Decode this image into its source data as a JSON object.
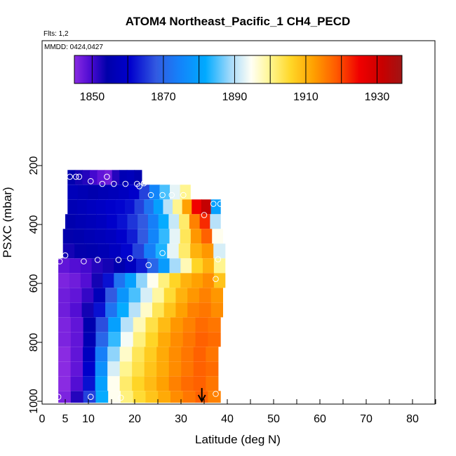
{
  "chart_data": {
    "type": "heatmap",
    "title": "ATOM4 Northeast_Pacific_1 CH4_PECD",
    "flights_note": "Flts: 1,2",
    "dates_note": "MMDD: 0424,0427",
    "xlabel": "Latitude (deg N)",
    "ylabel": "PSXC (mbar)",
    "xlim": [
      0,
      85
    ],
    "ylim": [
      1000,
      50
    ],
    "y_inverted": true,
    "x_ticks": [
      0,
      5,
      10,
      20,
      30,
      40,
      50,
      60,
      70,
      80
    ],
    "x_tick_labels": [
      "0",
      "5",
      "10",
      "20",
      "30",
      "40",
      "50",
      "60",
      "70",
      "80"
    ],
    "x_minor_ticks": [
      15,
      25,
      35,
      45,
      55,
      65,
      75,
      85
    ],
    "y_ticks": [
      200,
      400,
      600,
      800,
      1000
    ],
    "y_tick_labels": [
      "200",
      "400",
      "600",
      "800",
      "1000"
    ],
    "colorbar": {
      "min": 1845,
      "max": 1937,
      "ticks": [
        1850,
        1870,
        1890,
        1910,
        1930
      ],
      "tick_labels": [
        "1850",
        "1870",
        "1890",
        "1910",
        "1930"
      ],
      "boundaries": [
        1850,
        1860,
        1870,
        1880,
        1890,
        1900,
        1910,
        1920,
        1930
      ],
      "placement": "top-inside"
    },
    "rows": [
      {
        "p_top": 215,
        "p_bottom": 265,
        "lat_min": 5.5,
        "lat_max": 21.5,
        "values": [
          1855,
          1853,
          1852,
          1850,
          1848,
          1847,
          1852,
          1856,
          1857,
          1855
        ]
      },
      {
        "p_top": 265,
        "p_bottom": 315,
        "lat_min": 5.5,
        "lat_max": 32.0,
        "values": [
          1857,
          1856,
          1855,
          1856,
          1857,
          1858,
          1860,
          1866,
          1875,
          1885,
          1893,
          1900
        ]
      },
      {
        "p_top": 315,
        "p_bottom": 365,
        "lat_min": 5.5,
        "lat_max": 38.5,
        "values": [
          1856,
          1857,
          1858,
          1859,
          1860,
          1861,
          1862,
          1866,
          1872,
          1880,
          1890,
          1900,
          1912,
          1925,
          1932,
          1880
        ]
      },
      {
        "p_top": 365,
        "p_bottom": 415,
        "lat_min": 5.0,
        "lat_max": 38.5,
        "values": [
          1855,
          1856,
          1857,
          1858,
          1860,
          1862,
          1865,
          1868,
          1874,
          1882,
          1891,
          1902,
          1915,
          1922,
          1890
        ]
      },
      {
        "p_top": 415,
        "p_bottom": 465,
        "lat_min": 4.5,
        "lat_max": 39.0,
        "values": [
          1854,
          1855,
          1856,
          1857,
          1858,
          1860,
          1863,
          1868,
          1875,
          1884,
          1893,
          1903,
          1913,
          1918,
          1895
        ]
      },
      {
        "p_top": 465,
        "p_bottom": 515,
        "lat_min": 4.5,
        "lat_max": 39.5,
        "values": [
          1853,
          1854,
          1855,
          1856,
          1858,
          1861,
          1866,
          1874,
          1883,
          1893,
          1902,
          1910,
          1913,
          1892
        ]
      },
      {
        "p_top": 515,
        "p_bottom": 565,
        "lat_min": 3.5,
        "lat_max": 39.5,
        "values": [
          1848,
          1849,
          1850,
          1852,
          1853,
          1855,
          1858,
          1863,
          1870,
          1879,
          1889,
          1898,
          1906,
          1910,
          1900
        ]
      },
      {
        "p_top": 565,
        "p_bottom": 615,
        "lat_min": 3.5,
        "lat_max": 39.5,
        "values": [
          1846,
          1847,
          1849,
          1853,
          1862,
          1872,
          1880,
          1888,
          1895,
          1901,
          1906,
          1910,
          1912,
          1914,
          1908
        ]
      },
      {
        "p_top": 615,
        "p_bottom": 665,
        "lat_min": 3.5,
        "lat_max": 39.0,
        "values": [
          1847,
          1848,
          1851,
          1857,
          1868,
          1878,
          1885,
          1892,
          1899,
          1905,
          1910,
          1913,
          1915,
          1913
        ]
      },
      {
        "p_top": 665,
        "p_bottom": 715,
        "lat_min": 3.5,
        "lat_max": 39.0,
        "values": [
          1847,
          1849,
          1853,
          1862,
          1872,
          1882,
          1890,
          1897,
          1903,
          1908,
          1912,
          1915,
          1916,
          1914
        ]
      },
      {
        "p_top": 715,
        "p_bottom": 765,
        "lat_min": 3.5,
        "lat_max": 38.5,
        "values": [
          1846,
          1848,
          1855,
          1867,
          1880,
          1890,
          1898,
          1904,
          1909,
          1913,
          1915,
          1917,
          1916
        ]
      },
      {
        "p_top": 765,
        "p_bottom": 815,
        "lat_min": 3.5,
        "lat_max": 38.5,
        "values": [
          1846,
          1848,
          1856,
          1870,
          1884,
          1894,
          1901,
          1906,
          1911,
          1914,
          1916,
          1918,
          1917
        ]
      },
      {
        "p_top": 815,
        "p_bottom": 865,
        "lat_min": 3.5,
        "lat_max": 38.0,
        "values": [
          1845,
          1848,
          1858,
          1874,
          1888,
          1897,
          1903,
          1907,
          1911,
          1914,
          1916,
          1918,
          1916
        ]
      },
      {
        "p_top": 865,
        "p_bottom": 915,
        "lat_min": 3.5,
        "lat_max": 38.0,
        "values": [
          1845,
          1848,
          1860,
          1877,
          1892,
          1900,
          1904,
          1908,
          1911,
          1914,
          1916,
          1918,
          1917
        ]
      },
      {
        "p_top": 915,
        "p_bottom": 965,
        "lat_min": 3.5,
        "lat_max": 38.0,
        "values": [
          1845,
          1849,
          1862,
          1880,
          1895,
          1902,
          1906,
          1909,
          1912,
          1915,
          1917,
          1918,
          1916
        ]
      },
      {
        "p_top": 965,
        "p_bottom": 1005,
        "lat_min": 3.5,
        "lat_max": 38.5,
        "values": [
          1846,
          1852,
          1866,
          1882,
          1895,
          1901,
          1905,
          1908,
          1911,
          1914,
          1916,
          1918,
          1915
        ]
      }
    ],
    "markers": [
      {
        "lat": 6.0,
        "p": 238
      },
      {
        "lat": 7.3,
        "p": 238
      },
      {
        "lat": 8.0,
        "p": 238
      },
      {
        "lat": 14.0,
        "p": 238
      },
      {
        "lat": 10.5,
        "p": 253
      },
      {
        "lat": 13.0,
        "p": 262
      },
      {
        "lat": 15.5,
        "p": 262
      },
      {
        "lat": 18.0,
        "p": 262
      },
      {
        "lat": 20.5,
        "p": 262
      },
      {
        "lat": 21.0,
        "p": 270
      },
      {
        "lat": 22.0,
        "p": 260
      },
      {
        "lat": 23.5,
        "p": 300
      },
      {
        "lat": 26.0,
        "p": 300
      },
      {
        "lat": 28.0,
        "p": 300
      },
      {
        "lat": 30.5,
        "p": 300
      },
      {
        "lat": 37.0,
        "p": 330
      },
      {
        "lat": 38.5,
        "p": 330
      },
      {
        "lat": 35.0,
        "p": 368
      },
      {
        "lat": 5.0,
        "p": 505
      },
      {
        "lat": 26.0,
        "p": 497
      },
      {
        "lat": 3.8,
        "p": 525
      },
      {
        "lat": 9.0,
        "p": 525
      },
      {
        "lat": 12.0,
        "p": 520
      },
      {
        "lat": 16.5,
        "p": 520
      },
      {
        "lat": 19.0,
        "p": 515
      },
      {
        "lat": 23.0,
        "p": 538
      },
      {
        "lat": 38.0,
        "p": 518
      },
      {
        "lat": 37.5,
        "p": 585
      },
      {
        "lat": 3.5,
        "p": 985
      },
      {
        "lat": 10.5,
        "p": 985
      },
      {
        "lat": 17.0,
        "p": 988
      },
      {
        "lat": 37.5,
        "p": 975
      }
    ],
    "arrow": {
      "lat": 34.5,
      "p_from": 955,
      "p_to": 1000
    }
  }
}
